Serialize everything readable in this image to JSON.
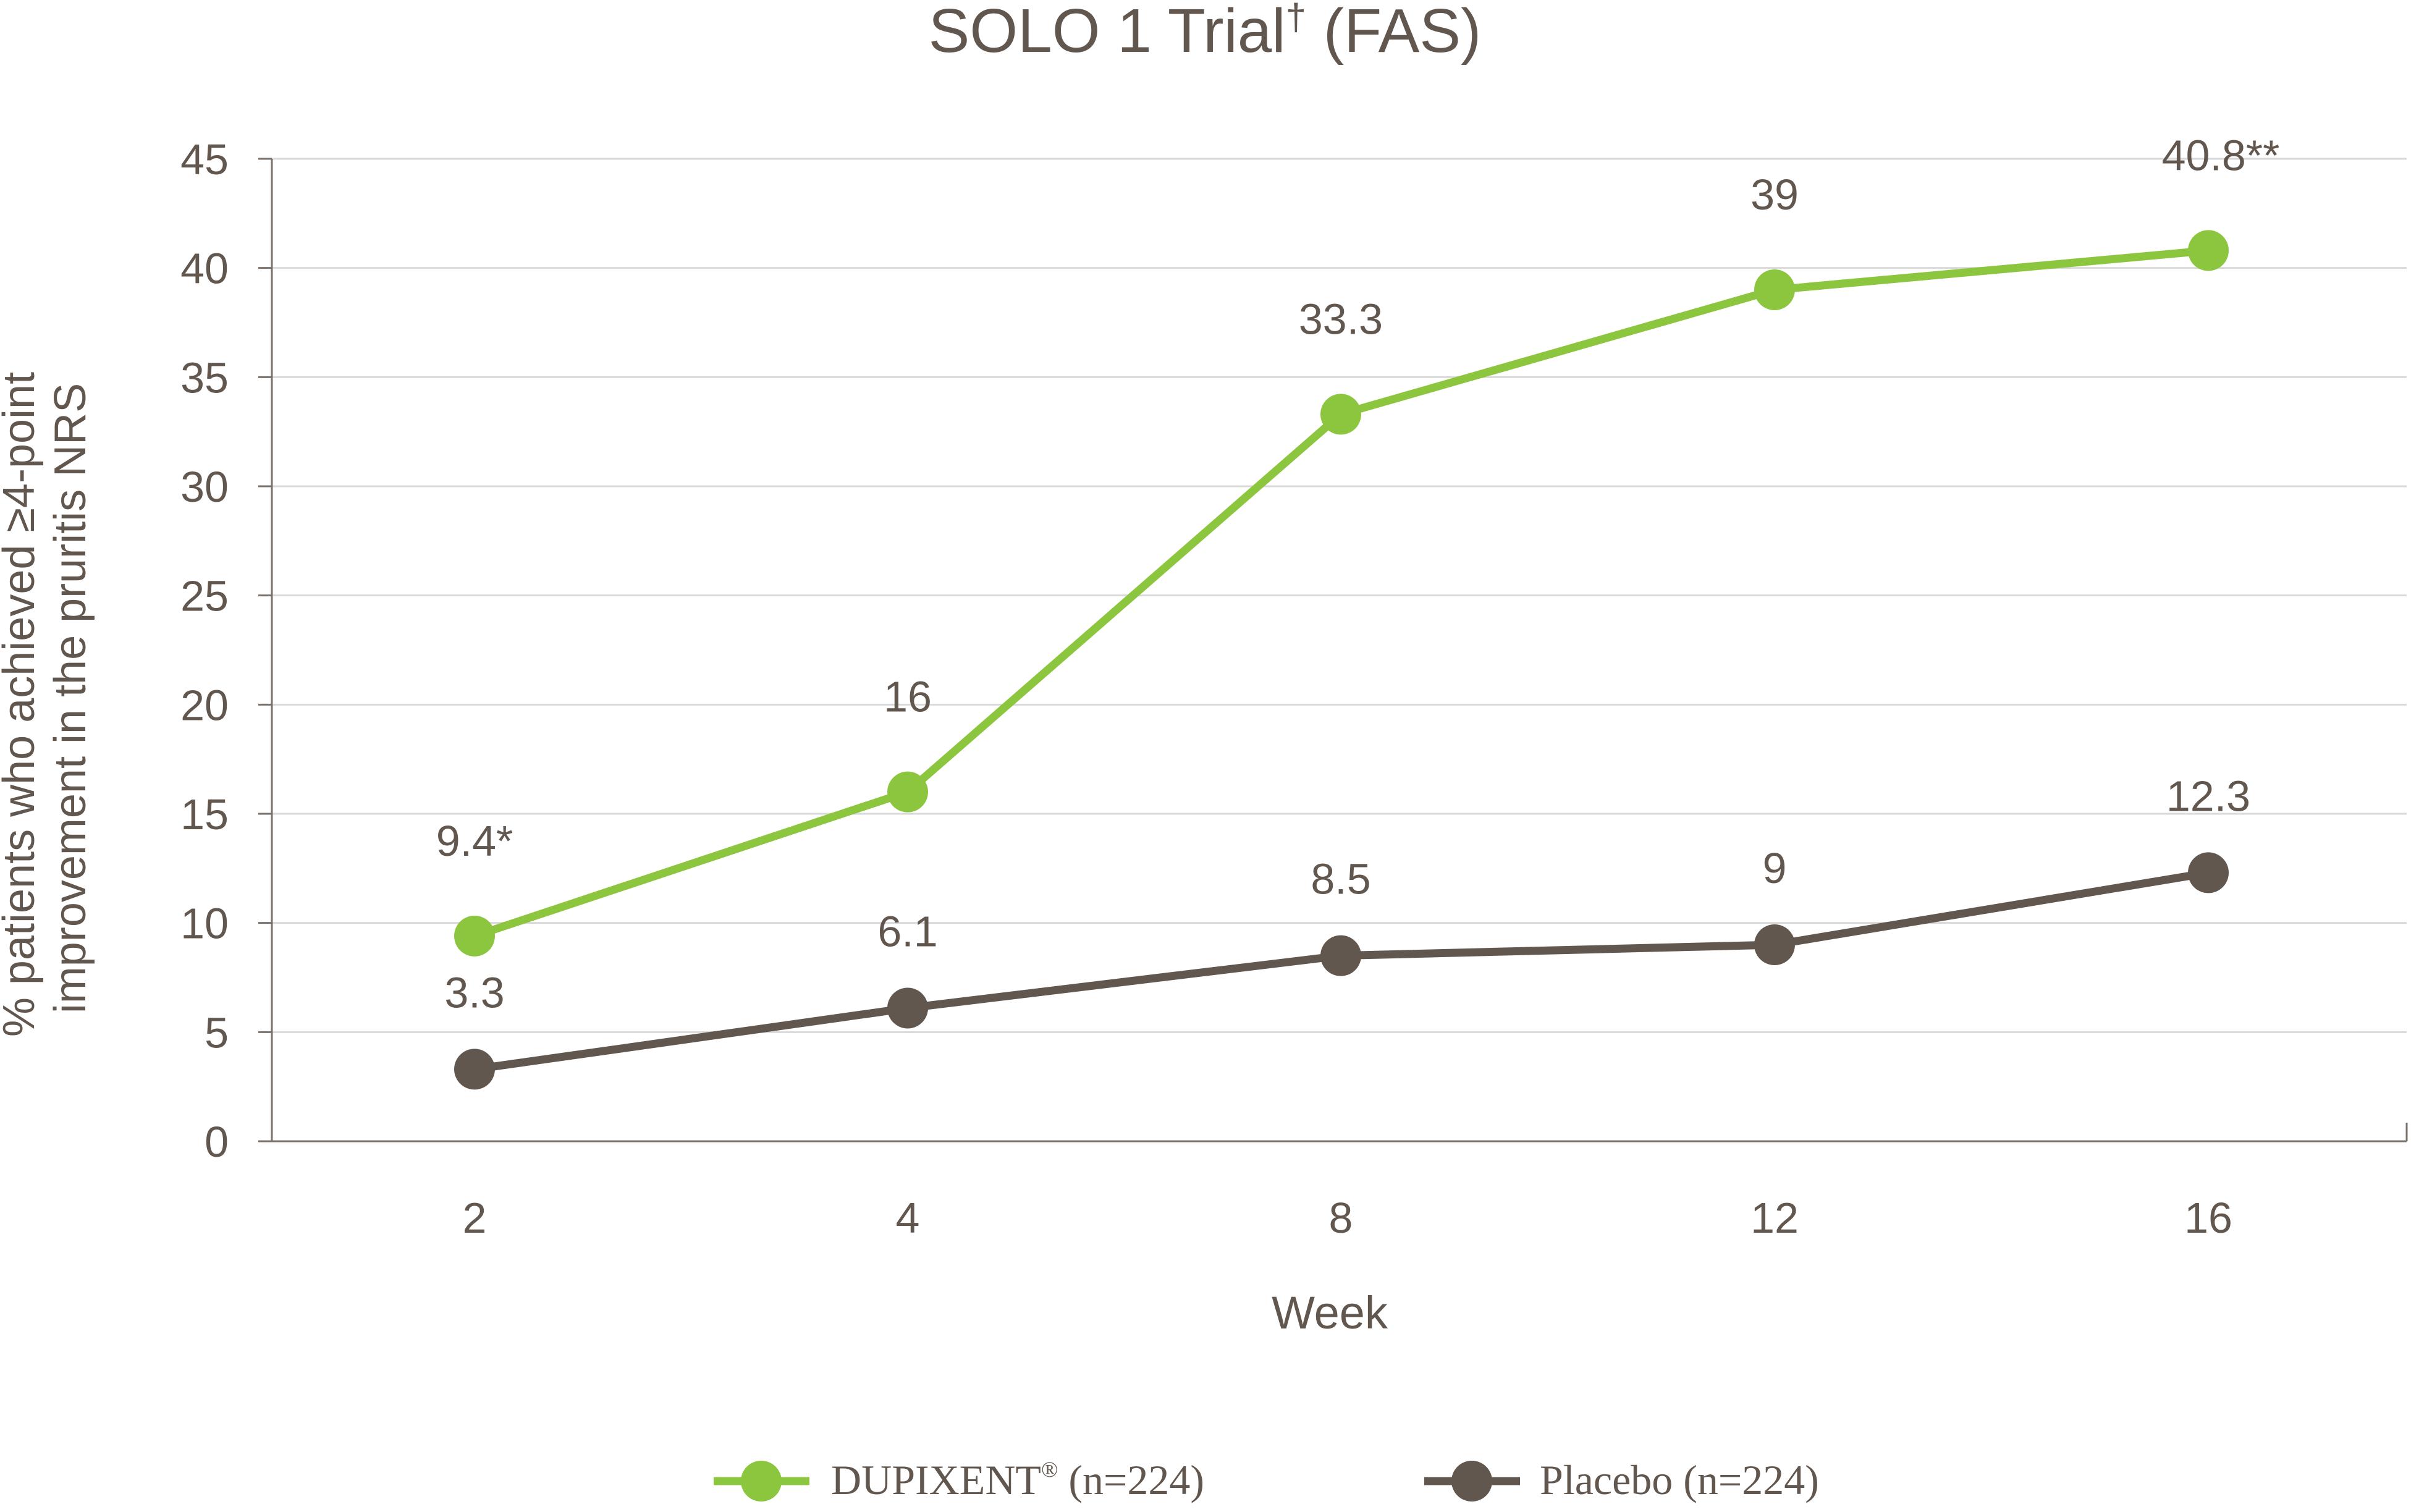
{
  "chart_data": {
    "type": "line",
    "title": "SOLO 1 Trial",
    "title_sup": "†",
    "title_suffix": " (FAS)",
    "xlabel": "Week",
    "ylabel_lines": [
      "% patients who achieved ≥4-point",
      "improvement in the pruritis NRS"
    ],
    "categories": [
      "2",
      "4",
      "8",
      "12",
      "16"
    ],
    "x": [
      2,
      4,
      8,
      12,
      16
    ],
    "ylim": [
      0,
      45
    ],
    "yticks": [
      0,
      5,
      10,
      15,
      20,
      25,
      30,
      35,
      40,
      45
    ],
    "grid": true,
    "legend_position": "bottom",
    "series": [
      {
        "name": "DUPIXENT",
        "name_sup": "®",
        "name_suffix": " (n=224)",
        "color": "#8cc63f",
        "values": [
          9.4,
          16,
          33.3,
          39,
          40.8
        ],
        "labels": [
          "9.4*",
          "16",
          "33.3",
          "39",
          "40.8**"
        ]
      },
      {
        "name": "Placebo",
        "name_suffix": " (n=224)",
        "color": "#62574f",
        "values": [
          3.3,
          6.1,
          8.5,
          9,
          12.3
        ],
        "labels": [
          "3.3",
          "6.1",
          "8.5",
          "9",
          "12.3"
        ]
      }
    ]
  }
}
